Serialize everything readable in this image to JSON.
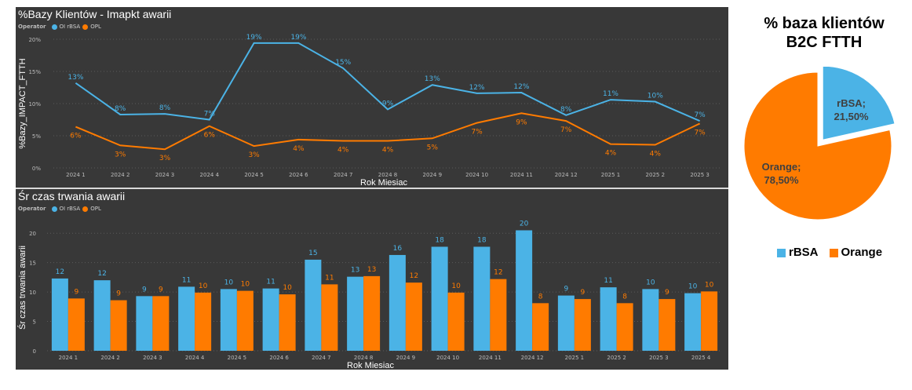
{
  "colors": {
    "rbsa": "#4bb3e6",
    "opl": "#ff7b00",
    "panel_bg": "#383838"
  },
  "chart_data": [
    {
      "type": "line",
      "title": "%Bazy Klientów - Imapkt awarii",
      "legend_title": "Operator",
      "legend_position": "top-left",
      "xlabel": "Rok Miesiac",
      "ylabel": "%Bazy_IMPACT_FTTH",
      "ylim": [
        0,
        20
      ],
      "yticks": [
        "0%",
        "5%",
        "10%",
        "15%",
        "20%"
      ],
      "ytick_values": [
        0,
        5,
        10,
        15,
        20
      ],
      "grid": true,
      "categories": [
        "2024 1",
        "2024 2",
        "2024 3",
        "2024 4",
        "2024 5",
        "2024 6",
        "2024 7",
        "2024 8",
        "2024 9",
        "2024 10",
        "2024 11",
        "2024 12",
        "2025 1",
        "2025 2",
        "2025 3"
      ],
      "series": [
        {
          "name": "OI rBSA",
          "color": "#4bb3e6",
          "values": [
            13.2,
            8.3,
            8.4,
            7.5,
            19.4,
            19.4,
            15.5,
            9.1,
            12.9,
            11.6,
            11.7,
            8.2,
            10.6,
            10.3,
            7.3
          ],
          "labels": [
            "13%",
            "8%",
            "8%",
            "7%",
            "19%",
            "19%",
            "15%",
            "9%",
            "13%",
            "12%",
            "12%",
            "8%",
            "11%",
            "10%",
            "7%"
          ]
        },
        {
          "name": "OPL",
          "color": "#ff7b00",
          "values": [
            6.4,
            3.5,
            2.9,
            6.5,
            3.4,
            4.4,
            4.2,
            4.2,
            4.6,
            7.0,
            8.5,
            7.3,
            3.7,
            3.6,
            6.9
          ],
          "labels": [
            "6%",
            "3%",
            "3%",
            "6%",
            "3%",
            "4%",
            "4%",
            "4%",
            "5%",
            "7%",
            "9%",
            "7%",
            "4%",
            "4%",
            "7%"
          ]
        }
      ]
    },
    {
      "type": "bar",
      "title": "Śr czas trwania awarii",
      "legend_title": "Operator",
      "legend_position": "top-left",
      "xlabel": "Rok Miesiac",
      "ylabel": "Śr czas trwania awarii",
      "ylim": [
        0,
        21.5
      ],
      "yticks": [
        "0",
        "5",
        "10",
        "15",
        "20"
      ],
      "ytick_values": [
        0,
        5,
        10,
        15,
        20
      ],
      "grid": true,
      "categories": [
        "2024 1",
        "2024 2",
        "2024 3",
        "2024 4",
        "2024 5",
        "2024 6",
        "2024 7",
        "2024 8",
        "2024 9",
        "2024 10",
        "2024 11",
        "2024 12",
        "2025 1",
        "2025 2",
        "2025 3",
        "2025 4"
      ],
      "series": [
        {
          "name": "OI rBSA",
          "color": "#4bb3e6",
          "values": [
            12.3,
            12.0,
            9.3,
            10.9,
            10.5,
            10.6,
            15.5,
            12.6,
            16.3,
            17.7,
            17.7,
            20.5,
            9.4,
            10.8,
            10.5,
            9.8
          ],
          "labels": [
            "12",
            "12",
            "9",
            "11",
            "10",
            "11",
            "15",
            "13",
            "16",
            "18",
            "18",
            "20",
            "9",
            "11",
            "10",
            "10"
          ]
        },
        {
          "name": "OPL",
          "color": "#ff7b00",
          "values": [
            8.9,
            8.6,
            9.3,
            9.9,
            10.2,
            9.6,
            11.3,
            12.7,
            11.6,
            9.9,
            12.2,
            8.1,
            8.8,
            8.1,
            8.8,
            10.1
          ],
          "labels": [
            "9",
            "9",
            "9",
            "10",
            "10",
            "10",
            "11",
            "13",
            "12",
            "10",
            "12",
            "8",
            "9",
            "8",
            "9",
            "10"
          ]
        }
      ]
    },
    {
      "type": "pie",
      "title": "% baza klientów B2C FTTH",
      "legend_position": "bottom",
      "slices": [
        {
          "name": "rBSA",
          "value": 21.5,
          "label": "rBSA;",
          "pct_label": "21,50%",
          "color": "#4bb3e6",
          "exploded": true
        },
        {
          "name": "Orange",
          "value": 78.5,
          "label": "Orange;",
          "pct_label": "78,50%",
          "color": "#ff7b00",
          "exploded": false
        }
      ]
    }
  ],
  "legend": {
    "operator_label": "Operator",
    "rbsa": "OI rBSA",
    "opl": "OPL"
  },
  "pie_title_line1": "% baza klientów",
  "pie_title_line2": "B2C FTTH",
  "pie_legend": {
    "rbsa": "rBSA",
    "orange": "Orange"
  }
}
